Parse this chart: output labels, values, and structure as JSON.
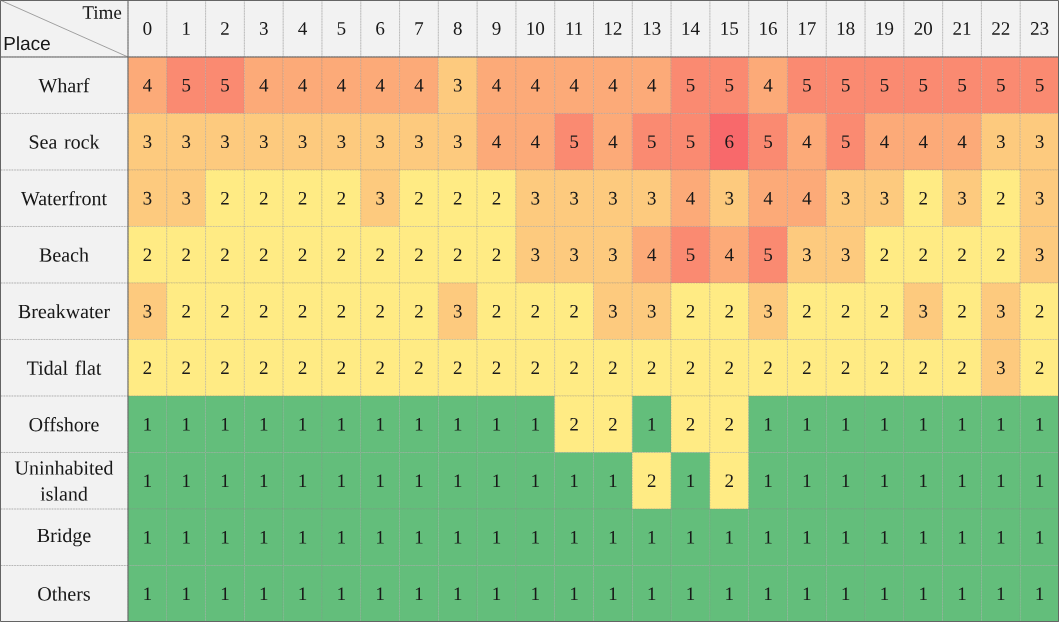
{
  "chart_data": {
    "type": "heatmap",
    "xlabel": "Time",
    "ylabel": "Place",
    "categories": [
      "0",
      "1",
      "2",
      "3",
      "4",
      "5",
      "6",
      "7",
      "8",
      "9",
      "10",
      "11",
      "12",
      "13",
      "14",
      "15",
      "16",
      "17",
      "18",
      "19",
      "20",
      "21",
      "22",
      "23"
    ],
    "y_categories": [
      "Wharf",
      "Sea rock",
      "Waterfront",
      "Beach",
      "Breakwater",
      "Tidal flat",
      "Offshore",
      "Uninhabited island",
      "Bridge",
      "Others"
    ],
    "cells": [
      [
        4,
        5,
        5,
        4,
        4,
        4,
        4,
        4,
        3,
        4,
        4,
        4,
        4,
        4,
        5,
        5,
        4,
        5,
        5,
        5,
        5,
        5,
        5,
        5
      ],
      [
        3,
        3,
        3,
        3,
        3,
        3,
        3,
        3,
        3,
        4,
        4,
        5,
        4,
        5,
        5,
        6,
        5,
        4,
        5,
        4,
        4,
        4,
        3,
        3
      ],
      [
        3,
        3,
        2,
        2,
        2,
        2,
        3,
        2,
        2,
        2,
        3,
        3,
        3,
        3,
        4,
        3,
        4,
        4,
        3,
        3,
        2,
        3,
        2,
        3
      ],
      [
        2,
        2,
        2,
        2,
        2,
        2,
        2,
        2,
        2,
        2,
        3,
        3,
        3,
        4,
        5,
        4,
        5,
        3,
        3,
        2,
        2,
        2,
        2,
        3
      ],
      [
        3,
        2,
        2,
        2,
        2,
        2,
        2,
        2,
        3,
        2,
        2,
        2,
        3,
        3,
        2,
        2,
        3,
        2,
        2,
        2,
        3,
        2,
        3,
        2
      ],
      [
        2,
        2,
        2,
        2,
        2,
        2,
        2,
        2,
        2,
        2,
        2,
        2,
        2,
        2,
        2,
        2,
        2,
        2,
        2,
        2,
        2,
        2,
        3,
        2
      ],
      [
        1,
        1,
        1,
        1,
        1,
        1,
        1,
        1,
        1,
        1,
        1,
        2,
        2,
        1,
        2,
        2,
        1,
        1,
        1,
        1,
        1,
        1,
        1,
        1
      ],
      [
        1,
        1,
        1,
        1,
        1,
        1,
        1,
        1,
        1,
        1,
        1,
        1,
        1,
        2,
        1,
        2,
        1,
        1,
        1,
        1,
        1,
        1,
        1,
        1
      ],
      [
        1,
        1,
        1,
        1,
        1,
        1,
        1,
        1,
        1,
        1,
        1,
        1,
        1,
        1,
        1,
        1,
        1,
        1,
        1,
        1,
        1,
        1,
        1,
        1
      ],
      [
        1,
        1,
        1,
        1,
        1,
        1,
        1,
        1,
        1,
        1,
        1,
        1,
        1,
        1,
        1,
        1,
        1,
        1,
        1,
        1,
        1,
        1,
        1,
        1
      ]
    ],
    "data_labels": true
  }
}
